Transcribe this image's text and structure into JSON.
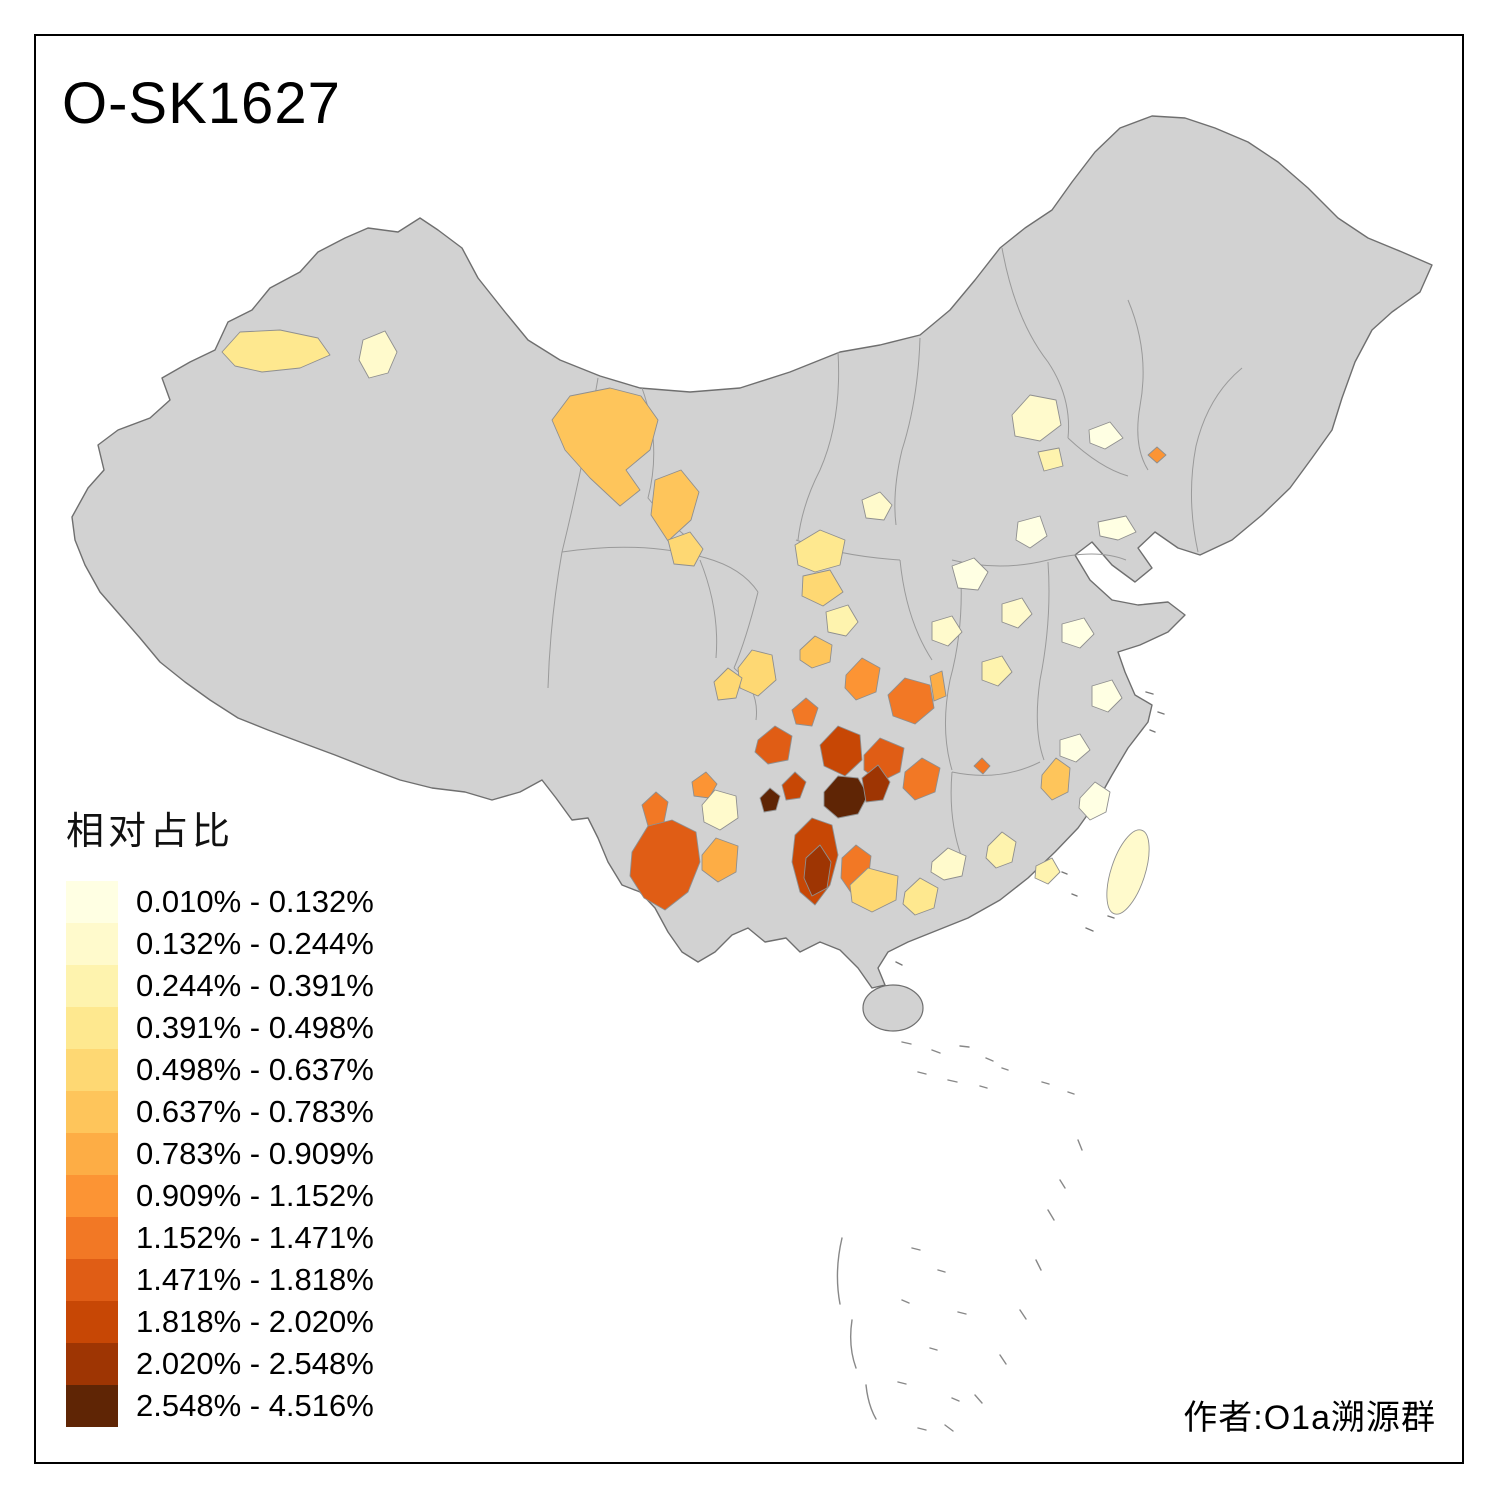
{
  "title": "O-SK1627",
  "author_credit": "作者:O1a溯源群",
  "legend": {
    "title": "相对占比",
    "items": [
      {
        "range": "0.010% - 0.132%",
        "color": "#FFFFE3"
      },
      {
        "range": "0.132% - 0.244%",
        "color": "#FFFACC"
      },
      {
        "range": "0.244% - 0.391%",
        "color": "#FEF3AE"
      },
      {
        "range": "0.391% - 0.498%",
        "color": "#FEE88F"
      },
      {
        "range": "0.498% - 0.637%",
        "color": "#FED873"
      },
      {
        "range": "0.637% - 0.783%",
        "color": "#FEC55B"
      },
      {
        "range": "0.783% - 0.909%",
        "color": "#FDAD45"
      },
      {
        "range": "0.909% - 1.152%",
        "color": "#FC9434"
      },
      {
        "range": "1.152% - 1.471%",
        "color": "#F27825"
      },
      {
        "range": "1.471% - 1.818%",
        "color": "#E05D15"
      },
      {
        "range": "1.818% - 2.020%",
        "color": "#C74705"
      },
      {
        "range": "2.020% - 2.548%",
        "color": "#9E3503"
      },
      {
        "range": "2.548% - 4.516%",
        "color": "#5F2505"
      }
    ]
  },
  "map": {
    "no_data_color": "#D2D2D2",
    "national_border_color": "#6F6F6F",
    "internal_border_color": "#9A9A9A",
    "sea_color": "#FFFFFF"
  }
}
